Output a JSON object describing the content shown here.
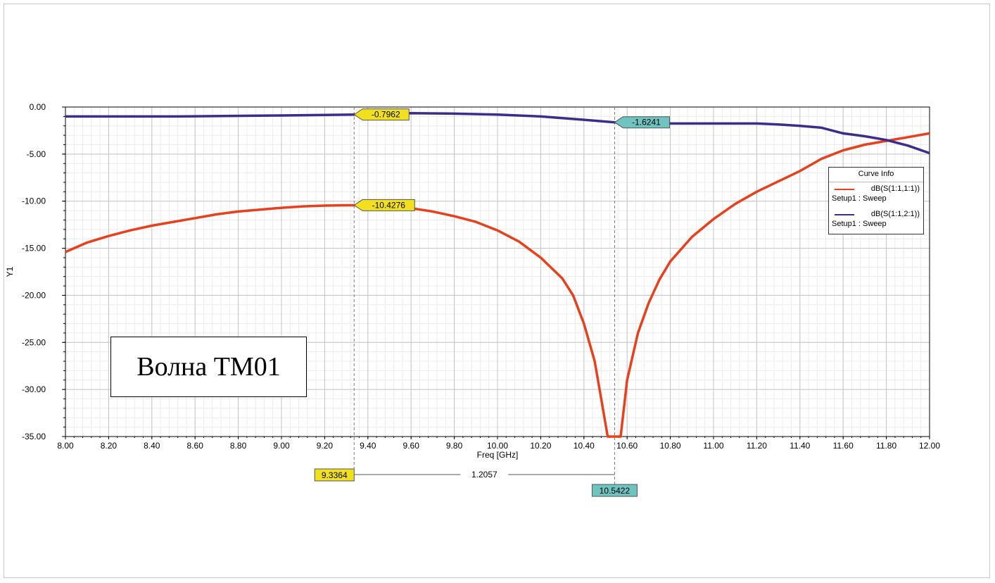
{
  "chart_data": {
    "type": "line",
    "xlabel": "Freq [GHz]",
    "ylabel": "Y1",
    "xlim": [
      8.0,
      12.0
    ],
    "ylim": [
      -35.0,
      0.0
    ],
    "grid": true,
    "legend_position": "right",
    "x_ticks": [
      "8.00",
      "8.20",
      "8.40",
      "8.60",
      "8.80",
      "9.00",
      "9.20",
      "9.40",
      "9.60",
      "9.80",
      "10.00",
      "10.20",
      "10.40",
      "10.60",
      "10.80",
      "11.00",
      "11.20",
      "11.40",
      "11.60",
      "11.80",
      "12.00"
    ],
    "y_ticks": [
      "0.00",
      "-5.00",
      "-10.00",
      "-15.00",
      "-20.00",
      "-25.00",
      "-30.00",
      "-35.00"
    ],
    "legend": {
      "title": "Curve Info",
      "setup_label": "Setup1 : Sweep"
    },
    "series": [
      {
        "name": "dB(S(1:1,1:1))",
        "color": "#e8401c",
        "points": [
          [
            8.0,
            -15.4
          ],
          [
            8.1,
            -14.4
          ],
          [
            8.2,
            -13.7
          ],
          [
            8.3,
            -13.1
          ],
          [
            8.4,
            -12.6
          ],
          [
            8.5,
            -12.2
          ],
          [
            8.6,
            -11.8
          ],
          [
            8.7,
            -11.4
          ],
          [
            8.8,
            -11.1
          ],
          [
            8.9,
            -10.9
          ],
          [
            9.0,
            -10.7
          ],
          [
            9.1,
            -10.55
          ],
          [
            9.2,
            -10.47
          ],
          [
            9.3,
            -10.43
          ],
          [
            9.3364,
            -10.43
          ],
          [
            9.4,
            -10.44
          ],
          [
            9.5,
            -10.55
          ],
          [
            9.6,
            -10.75
          ],
          [
            9.7,
            -11.1
          ],
          [
            9.8,
            -11.6
          ],
          [
            9.9,
            -12.2
          ],
          [
            10.0,
            -13.1
          ],
          [
            10.1,
            -14.3
          ],
          [
            10.2,
            -16.0
          ],
          [
            10.3,
            -18.2
          ],
          [
            10.35,
            -20.0
          ],
          [
            10.4,
            -23.0
          ],
          [
            10.45,
            -27.0
          ],
          [
            10.48,
            -31.0
          ],
          [
            10.51,
            -35.0
          ],
          [
            10.57,
            -35.0
          ],
          [
            10.6,
            -29.0
          ],
          [
            10.65,
            -24.0
          ],
          [
            10.7,
            -20.8
          ],
          [
            10.75,
            -18.3
          ],
          [
            10.8,
            -16.4
          ],
          [
            10.9,
            -13.8
          ],
          [
            11.0,
            -11.9
          ],
          [
            11.1,
            -10.3
          ],
          [
            11.2,
            -9.0
          ],
          [
            11.3,
            -7.9
          ],
          [
            11.4,
            -6.8
          ],
          [
            11.5,
            -5.5
          ],
          [
            11.6,
            -4.6
          ],
          [
            11.7,
            -4.0
          ],
          [
            11.8,
            -3.6
          ],
          [
            11.9,
            -3.2
          ],
          [
            12.0,
            -2.8
          ]
        ]
      },
      {
        "name": "dB(S(1:1,2:1))",
        "color": "#3c2d8c",
        "points": [
          [
            8.0,
            -1.0
          ],
          [
            8.5,
            -1.0
          ],
          [
            9.0,
            -0.9
          ],
          [
            9.3364,
            -0.8
          ],
          [
            9.6,
            -0.65
          ],
          [
            9.8,
            -0.7
          ],
          [
            10.0,
            -0.8
          ],
          [
            10.2,
            -1.0
          ],
          [
            10.4,
            -1.35
          ],
          [
            10.5422,
            -1.62
          ],
          [
            10.7,
            -1.75
          ],
          [
            11.0,
            -1.75
          ],
          [
            11.2,
            -1.75
          ],
          [
            11.3,
            -1.85
          ],
          [
            11.4,
            -2.0
          ],
          [
            11.5,
            -2.2
          ],
          [
            11.6,
            -2.8
          ],
          [
            11.7,
            -3.1
          ],
          [
            11.8,
            -3.5
          ],
          [
            11.9,
            -4.1
          ],
          [
            12.0,
            -4.9
          ]
        ]
      }
    ],
    "markers": [
      {
        "x": 9.3364,
        "y": -0.7962,
        "label": "-0.7962",
        "color": "#f2e01f"
      },
      {
        "x": 9.3364,
        "y": -10.4276,
        "label": "-10.4276",
        "color": "#f2e01f"
      },
      {
        "x": 10.5422,
        "y": -1.6241,
        "label": "-1.6241",
        "color": "#6fc3c0"
      }
    ],
    "x_markers": [
      {
        "x": 9.3364,
        "label": "9.3364",
        "color": "#f2e01f"
      },
      {
        "x": 10.5422,
        "label": "10.5422",
        "color": "#6fc3c0"
      }
    ],
    "delta_label": "1.2057"
  },
  "annotation_box": {
    "text": "Волна TM01"
  }
}
